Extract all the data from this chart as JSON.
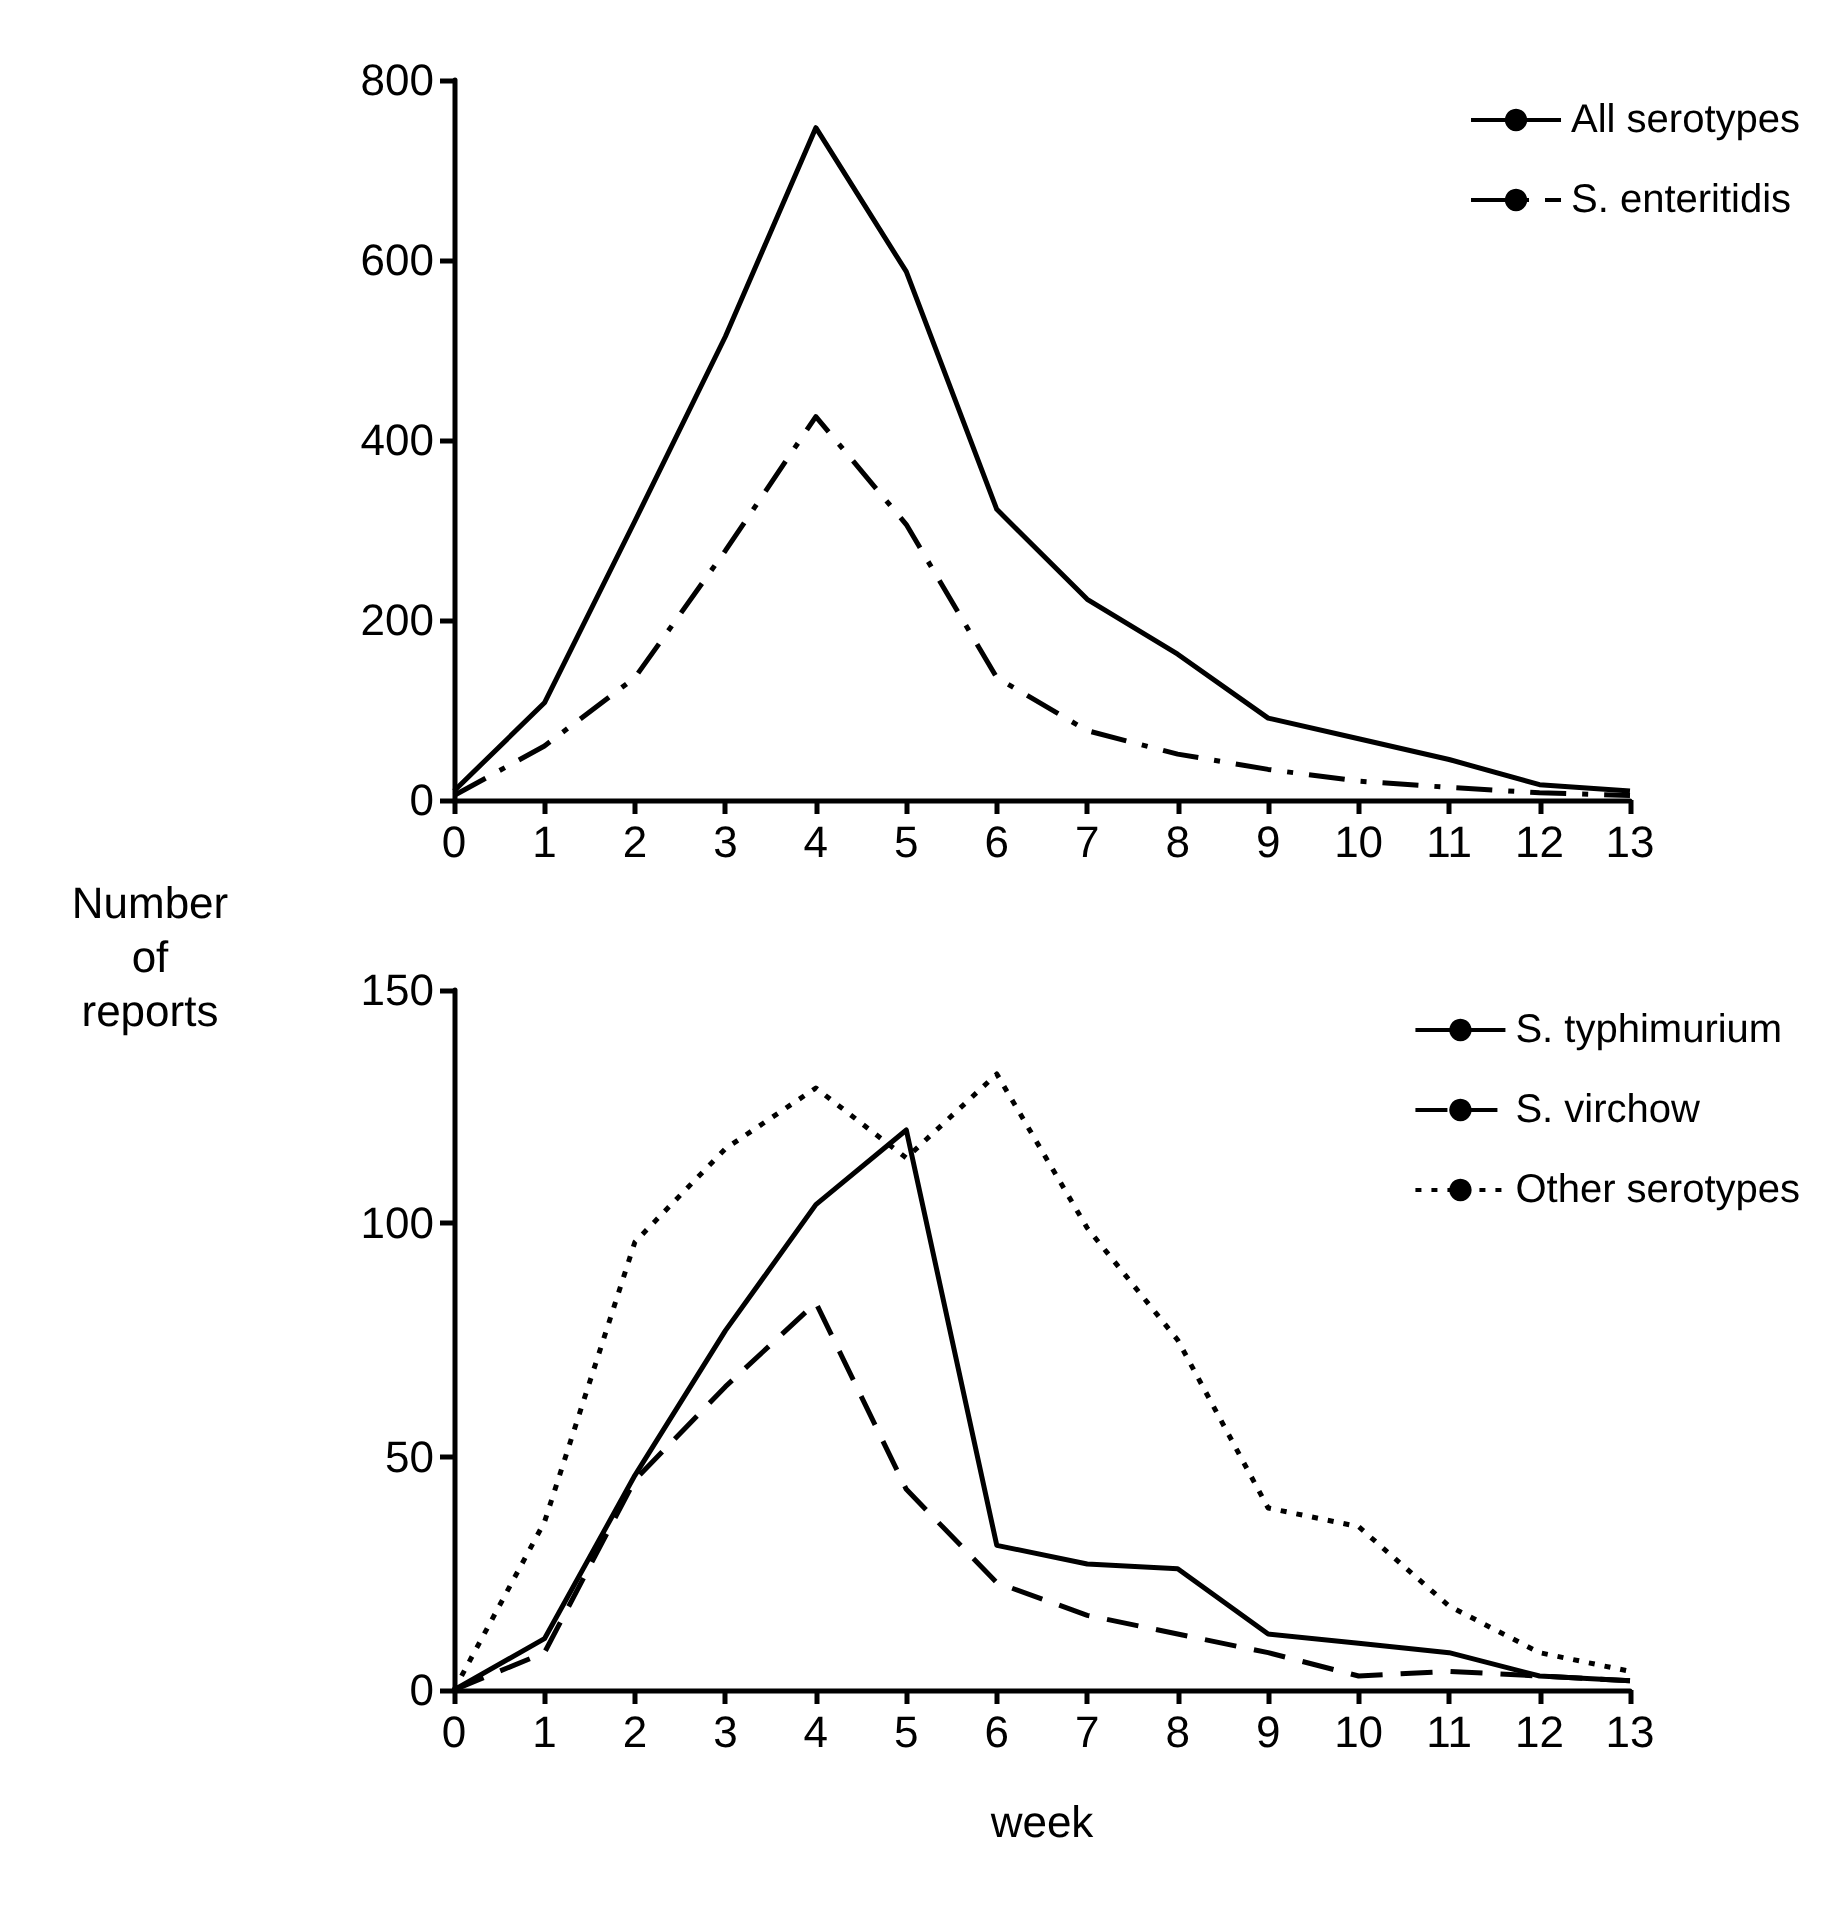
{
  "chart_data": [
    {
      "type": "line",
      "ylabel": "Number of reports",
      "x": [
        0,
        1,
        2,
        3,
        4,
        5,
        6,
        7,
        8,
        9,
        10,
        11,
        12,
        13
      ],
      "series": [
        {
          "name": "All serotypes",
          "color": "#000000",
          "line_style": "solid",
          "values": [
            10,
            108,
            310,
            515,
            747,
            587,
            323,
            223,
            162,
            91,
            68,
            45,
            17,
            10
          ]
        },
        {
          "name": "S. enteritidis",
          "color": "#000000",
          "line_style": "dashdot",
          "values": [
            5,
            60,
            136,
            277,
            426,
            306,
            136,
            77,
            51,
            34,
            21,
            14,
            8,
            5
          ]
        }
      ],
      "xlim": [
        0,
        13
      ],
      "xticks": [
        0,
        1,
        2,
        3,
        4,
        5,
        6,
        7,
        8,
        9,
        10,
        11,
        12,
        13
      ],
      "ylim": [
        0,
        800
      ],
      "yticks": [
        0,
        200,
        400,
        600,
        800
      ],
      "grid": false,
      "legend": "top right",
      "marker": "none"
    },
    {
      "type": "line",
      "xlabel": "week",
      "x": [
        0,
        1,
        2,
        3,
        4,
        5,
        6,
        7,
        8,
        9,
        10,
        11,
        12,
        13
      ],
      "series": [
        {
          "name": "S. typhimurium",
          "color": "#000000",
          "line_style": "solid",
          "values": [
            0,
            11,
            46,
            77,
            104,
            120,
            31,
            27,
            26,
            12,
            10,
            8,
            3,
            2
          ]
        },
        {
          "name": "S. virchow",
          "color": "#000000",
          "line_style": "dashed",
          "values": [
            0,
            8,
            45,
            65,
            83,
            43,
            23,
            16,
            12,
            8,
            3,
            4,
            3,
            2
          ]
        },
        {
          "name": "Other serotypes",
          "color": "#000000",
          "line_style": "dotted",
          "values": [
            0,
            36,
            96,
            116,
            129,
            114,
            132,
            99,
            75,
            39,
            35,
            18,
            8,
            4
          ]
        }
      ],
      "xlim": [
        0,
        13
      ],
      "xticks": [
        0,
        1,
        2,
        3,
        4,
        5,
        6,
        7,
        8,
        9,
        10,
        11,
        12,
        13
      ],
      "ylim": [
        0,
        150
      ],
      "yticks": [
        0,
        50,
        100,
        150
      ],
      "grid": false,
      "legend": "top right",
      "marker": "none"
    }
  ]
}
